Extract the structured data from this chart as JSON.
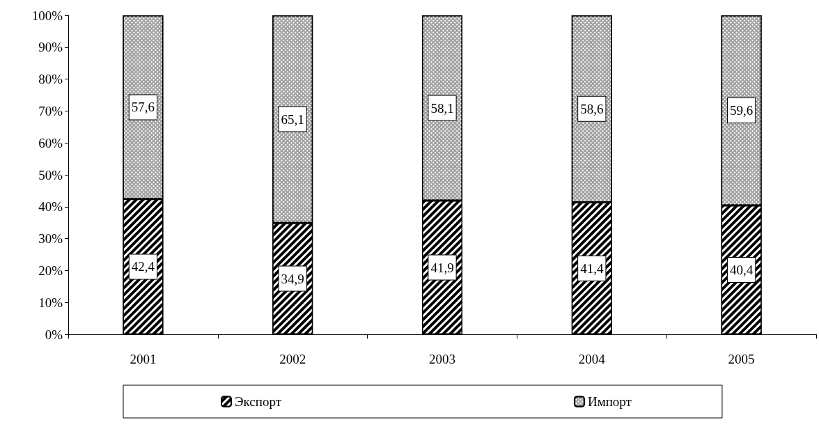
{
  "chart_data": {
    "type": "bar",
    "stacked": true,
    "categories": [
      "2001",
      "2002",
      "2003",
      "2004",
      "2005"
    ],
    "series": [
      {
        "name": "Экспорт",
        "color": "#000000",
        "values": [
          42.4,
          34.9,
          41.9,
          41.4,
          40.4
        ],
        "value_labels": [
          "42,4",
          "34,9",
          "41,9",
          "41,4",
          "40,4"
        ]
      },
      {
        "name": "Импорт",
        "color": "#a0a0a0",
        "values": [
          57.6,
          65.1,
          58.1,
          58.6,
          59.6
        ],
        "value_labels": [
          "57,6",
          "65,1",
          "58,1",
          "58,6",
          "59,6"
        ]
      }
    ],
    "ylim": [
      0,
      100
    ],
    "yticks": [
      {
        "value": 0,
        "label": "0%"
      },
      {
        "value": 10,
        "label": "10%"
      },
      {
        "value": 20,
        "label": "20%"
      },
      {
        "value": 30,
        "label": "30%"
      },
      {
        "value": 40,
        "label": "40%"
      },
      {
        "value": 50,
        "label": "50%"
      },
      {
        "value": 60,
        "label": "60%"
      },
      {
        "value": 70,
        "label": "70%"
      },
      {
        "value": 80,
        "label": "80%"
      },
      {
        "value": 90,
        "label": "90%"
      },
      {
        "value": 100,
        "label": "100%"
      }
    ],
    "grid": false,
    "legend": "bottom"
  }
}
